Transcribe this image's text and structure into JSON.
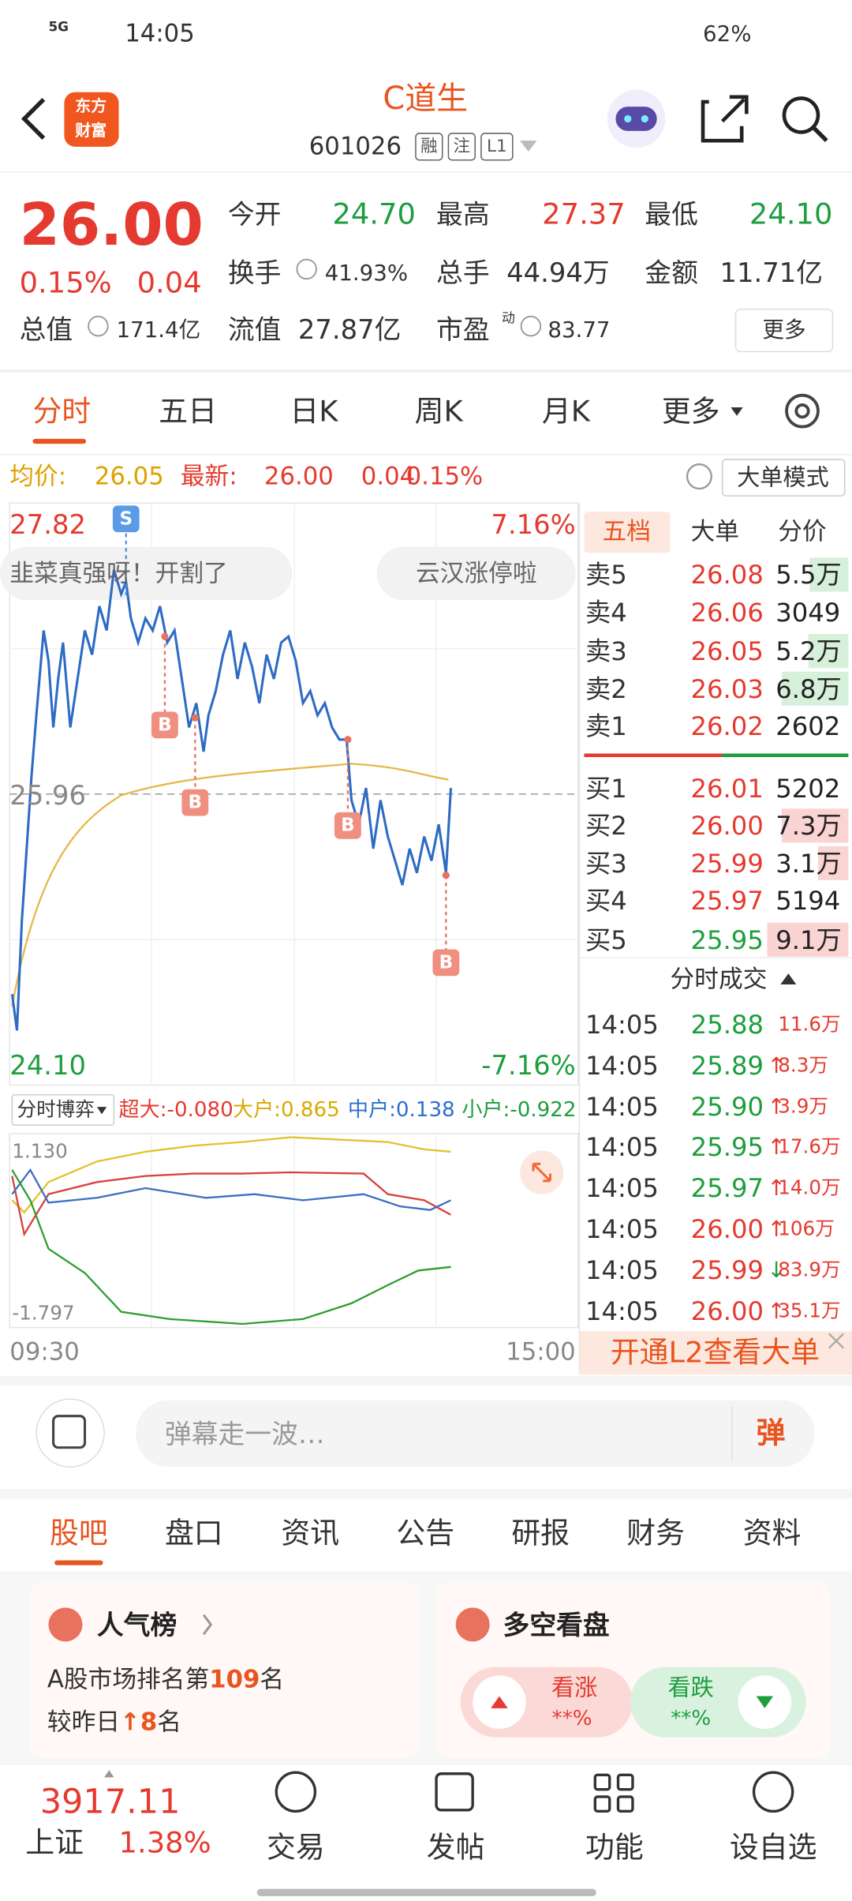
{
  "status": {
    "network": "5G",
    "time": "14:05",
    "battery": "62%"
  },
  "header": {
    "logo": [
      "东方",
      "财富"
    ],
    "title": "C道生",
    "code": "601026",
    "tags": [
      "融",
      "注",
      "L1"
    ]
  },
  "quote": {
    "price": "26.00",
    "change_pct": "0.15%",
    "change": "0.04",
    "stats": [
      {
        "label": "今开",
        "value": "24.70"
      },
      {
        "label": "最高",
        "value": "27.37"
      },
      {
        "label": "最低",
        "value": "24.10"
      },
      {
        "label": "换手",
        "value": "41.93%"
      },
      {
        "label": "总手",
        "value": "44.94万"
      },
      {
        "label": "金额",
        "value": "11.71亿"
      },
      {
        "label": "总值",
        "value": "171.4亿"
      },
      {
        "label": "流值",
        "value": "27.87亿"
      },
      {
        "label": "市盈",
        "value": "83.77"
      }
    ],
    "pe_mark": "动",
    "more": "更多"
  },
  "tabs": [
    "分时",
    "五日",
    "日K",
    "周K",
    "月K",
    "更多"
  ],
  "info": {
    "avg_label": "均价:",
    "avg": "26.05",
    "last_label": "最新:",
    "last": "26.00",
    "change": "0.04",
    "pct": "0.15%",
    "mode": "大单模式"
  },
  "chart": {
    "high": "27.82",
    "high_pct": "7.16%",
    "prev_close": "25.96",
    "low": "24.10",
    "low_pct": "-7.16%",
    "comments": [
      "韭菜真强呀！开割了",
      "云汉涨停啦"
    ],
    "sell_marker": "S",
    "buy_marker": "B"
  },
  "book": {
    "tabs": [
      "五档",
      "大单",
      "分价"
    ],
    "asks": [
      {
        "label": "卖5",
        "price": "26.08",
        "volume": "5.5万"
      },
      {
        "label": "卖4",
        "price": "26.06",
        "volume": "3049"
      },
      {
        "label": "卖3",
        "price": "26.05",
        "volume": "5.2万"
      },
      {
        "label": "卖2",
        "price": "26.03",
        "volume": "6.8万"
      },
      {
        "label": "卖1",
        "price": "26.02",
        "volume": "2602"
      }
    ],
    "bids": [
      {
        "label": "买1",
        "price": "26.01",
        "volume": "5202"
      },
      {
        "label": "买2",
        "price": "26.00",
        "volume": "7.3万"
      },
      {
        "label": "买3",
        "price": "25.99",
        "volume": "3.1万"
      },
      {
        "label": "买4",
        "price": "25.97",
        "volume": "5194"
      },
      {
        "label": "买5",
        "price": "25.95",
        "volume": "9.1万"
      }
    ]
  },
  "trades": {
    "title": "分时成交",
    "rows": [
      {
        "time": "14:05",
        "price": "25.88",
        "volume": "11.6万"
      },
      {
        "time": "14:05",
        "price": "25.89",
        "arrow": "↑",
        "volume": "8.3万"
      },
      {
        "time": "14:05",
        "price": "25.90",
        "arrow": "↑",
        "volume": "3.9万"
      },
      {
        "time": "14:05",
        "price": "25.95",
        "arrow": "↑",
        "volume": "17.6万"
      },
      {
        "time": "14:05",
        "price": "25.97",
        "arrow": "↑",
        "volume": "14.0万"
      },
      {
        "time": "14:05",
        "price": "26.00",
        "arrow": "↑",
        "volume": "106万"
      },
      {
        "time": "14:05",
        "price": "25.99",
        "arrow": "↓",
        "volume": "83.9万"
      },
      {
        "time": "14:05",
        "price": "26.00",
        "arrow": "↑",
        "volume": "35.1万"
      }
    ]
  },
  "l2": "开通L2查看大单",
  "flow": {
    "label": "分时博弈",
    "items": [
      "超大:-0.080",
      "大户:0.865",
      "中户:0.138",
      "小户:-0.922"
    ],
    "max": "1.130",
    "min": "-1.797",
    "start": "09:30",
    "end": "15:00"
  },
  "comment": {
    "placeholder": "弹幕走一波…",
    "button": "弹"
  },
  "sections": [
    "股吧",
    "盘口",
    "资讯",
    "公告",
    "研报",
    "财务",
    "资料"
  ],
  "rank": {
    "title": "人气榜",
    "prefix": "A股市场排名第",
    "position": "109",
    "unit": "名",
    "compare": "较昨日",
    "arrow": "↑",
    "change": "8"
  },
  "longshort": {
    "title": "多空看盘",
    "up_label": "看涨",
    "up_value": "**%",
    "down_label": "看跌",
    "down_value": "**%"
  },
  "nav": {
    "index_value": "3917.11",
    "index_name": "上证",
    "index_pct": "1.38%",
    "items": [
      "交易",
      "发帖",
      "功能",
      "设自选"
    ]
  }
}
